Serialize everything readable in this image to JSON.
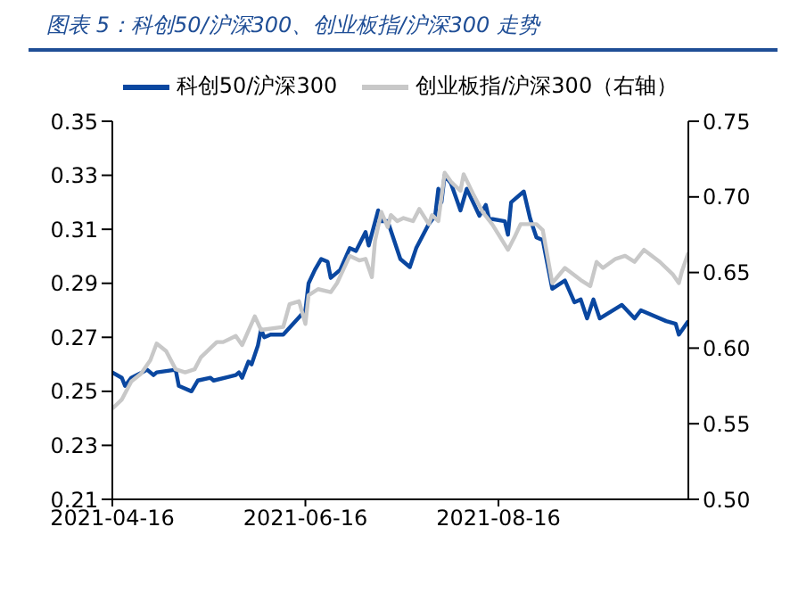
{
  "chart_data": {
    "type": "line",
    "title": "图表 5：科创50/沪深300、创业板指/沪深300 走势",
    "xlim": [
      "2021-04-16",
      "2021-10-15"
    ],
    "xticks": [
      "2021-04-16",
      "2021-06-16",
      "2021-08-16"
    ],
    "ylim": [
      0.21,
      0.35
    ],
    "yticks": [
      0.21,
      0.23,
      0.25,
      0.27,
      0.29,
      0.31,
      0.33,
      0.35
    ],
    "y2lim": [
      0.5,
      0.75
    ],
    "y2ticks": [
      {
        "value": 0.5,
        "label": "0.50"
      },
      0.55,
      {
        "value": 0.6,
        "label": "0.60"
      },
      0.65,
      {
        "value": 0.7,
        "label": "0.70"
      },
      0.75
    ],
    "legend": "top",
    "marker": "none",
    "line_style": "solid",
    "series": [
      {
        "name": "科创50/沪深300",
        "color": "#0a47a0",
        "x": [
          "2021-04-16",
          "2021-04-19",
          "2021-04-20",
          "2021-04-22",
          "2021-04-27",
          "2021-04-29",
          "2021-04-30",
          "2021-05-06",
          "2021-05-07",
          "2021-05-11",
          "2021-05-13",
          "2021-05-17",
          "2021-05-18",
          "2021-05-25",
          "2021-05-26",
          "2021-05-27",
          "2021-05-29",
          "2021-05-30",
          "2021-06-01",
          "2021-06-02",
          "2021-06-03",
          "2021-06-05",
          "2021-06-08",
          "2021-06-09",
          "2021-06-16",
          "2021-06-17",
          "2021-06-19",
          "2021-06-21",
          "2021-06-23",
          "2021-06-24",
          "2021-06-27",
          "2021-06-30",
          "2021-07-02",
          "2021-07-05",
          "2021-07-06",
          "2021-07-09",
          "2021-07-10",
          "2021-07-12",
          "2021-07-14",
          "2021-07-16",
          "2021-07-19",
          "2021-07-21",
          "2021-07-25",
          "2021-07-27",
          "2021-07-28",
          "2021-07-29",
          "2021-07-30",
          "2021-08-01",
          "2021-08-04",
          "2021-08-06",
          "2021-08-10",
          "2021-08-12",
          "2021-08-13",
          "2021-08-18",
          "2021-08-19",
          "2021-08-20",
          "2021-08-24",
          "2021-08-26",
          "2021-08-28",
          "2021-08-30",
          "2021-09-02",
          "2021-09-06",
          "2021-09-09",
          "2021-09-11",
          "2021-09-13",
          "2021-09-15",
          "2021-09-17",
          "2021-09-24",
          "2021-09-28",
          "2021-09-30",
          "2021-10-08",
          "2021-10-11",
          "2021-10-12",
          "2021-10-15"
        ],
        "values": [
          0.257,
          0.255,
          0.252,
          0.255,
          0.258,
          0.256,
          0.257,
          0.258,
          0.252,
          0.25,
          0.254,
          0.255,
          0.254,
          0.256,
          0.257,
          0.255,
          0.261,
          0.26,
          0.267,
          0.273,
          0.27,
          0.271,
          0.271,
          0.271,
          0.28,
          0.29,
          0.295,
          0.299,
          0.298,
          0.292,
          0.295,
          0.303,
          0.302,
          0.309,
          0.304,
          0.317,
          0.313,
          0.313,
          0.306,
          0.299,
          0.296,
          0.303,
          0.312,
          0.315,
          0.325,
          0.32,
          0.33,
          0.327,
          0.317,
          0.325,
          0.315,
          0.319,
          0.314,
          0.313,
          0.308,
          0.32,
          0.324,
          0.314,
          0.307,
          0.306,
          0.288,
          0.291,
          0.283,
          0.284,
          0.277,
          0.284,
          0.277,
          0.282,
          0.277,
          0.28,
          0.276,
          0.275,
          0.271,
          0.276
        ]
      },
      {
        "name": "创业板指/沪深300（右轴）",
        "color": "#c8c8c8",
        "axis": "y2",
        "x": [
          "2021-04-16",
          "2021-04-19",
          "2021-04-22",
          "2021-04-25",
          "2021-04-26",
          "2021-04-28",
          "2021-04-30",
          "2021-05-03",
          "2021-05-06",
          "2021-05-09",
          "2021-05-12",
          "2021-05-14",
          "2021-05-17",
          "2021-05-19",
          "2021-05-21",
          "2021-05-25",
          "2021-05-27",
          "2021-05-31",
          "2021-06-02",
          "2021-06-09",
          "2021-06-11",
          "2021-06-14",
          "2021-06-16",
          "2021-06-17",
          "2021-06-20",
          "2021-06-24",
          "2021-06-26",
          "2021-06-30",
          "2021-07-03",
          "2021-07-05",
          "2021-07-07",
          "2021-07-08",
          "2021-07-10",
          "2021-07-12",
          "2021-07-13",
          "2021-07-15",
          "2021-07-17",
          "2021-07-20",
          "2021-07-22",
          "2021-07-25",
          "2021-07-26",
          "2021-07-28",
          "2021-07-30",
          "2021-08-01",
          "2021-08-04",
          "2021-08-05",
          "2021-08-08",
          "2021-08-11",
          "2021-08-14",
          "2021-08-19",
          "2021-08-21",
          "2021-08-23",
          "2021-08-28",
          "2021-08-30",
          "2021-09-02",
          "2021-09-06",
          "2021-09-11",
          "2021-09-14",
          "2021-09-16",
          "2021-09-18",
          "2021-09-22",
          "2021-09-25",
          "2021-09-28",
          "2021-10-01",
          "2021-10-06",
          "2021-10-10",
          "2021-10-12",
          "2021-10-13",
          "2021-10-15"
        ],
        "values": [
          0.56,
          0.566,
          0.578,
          0.583,
          0.586,
          0.592,
          0.603,
          0.598,
          0.586,
          0.584,
          0.586,
          0.594,
          0.6,
          0.604,
          0.604,
          0.608,
          0.602,
          0.621,
          0.612,
          0.614,
          0.629,
          0.631,
          0.616,
          0.635,
          0.639,
          0.637,
          0.643,
          0.661,
          0.658,
          0.659,
          0.647,
          0.671,
          0.69,
          0.68,
          0.688,
          0.684,
          0.686,
          0.684,
          0.692,
          0.682,
          0.688,
          0.684,
          0.716,
          0.71,
          0.704,
          0.715,
          0.702,
          0.69,
          0.682,
          0.665,
          0.673,
          0.682,
          0.682,
          0.678,
          0.643,
          0.653,
          0.645,
          0.641,
          0.657,
          0.653,
          0.659,
          0.661,
          0.657,
          0.665,
          0.657,
          0.649,
          0.643,
          0.651,
          0.663
        ]
      }
    ]
  }
}
